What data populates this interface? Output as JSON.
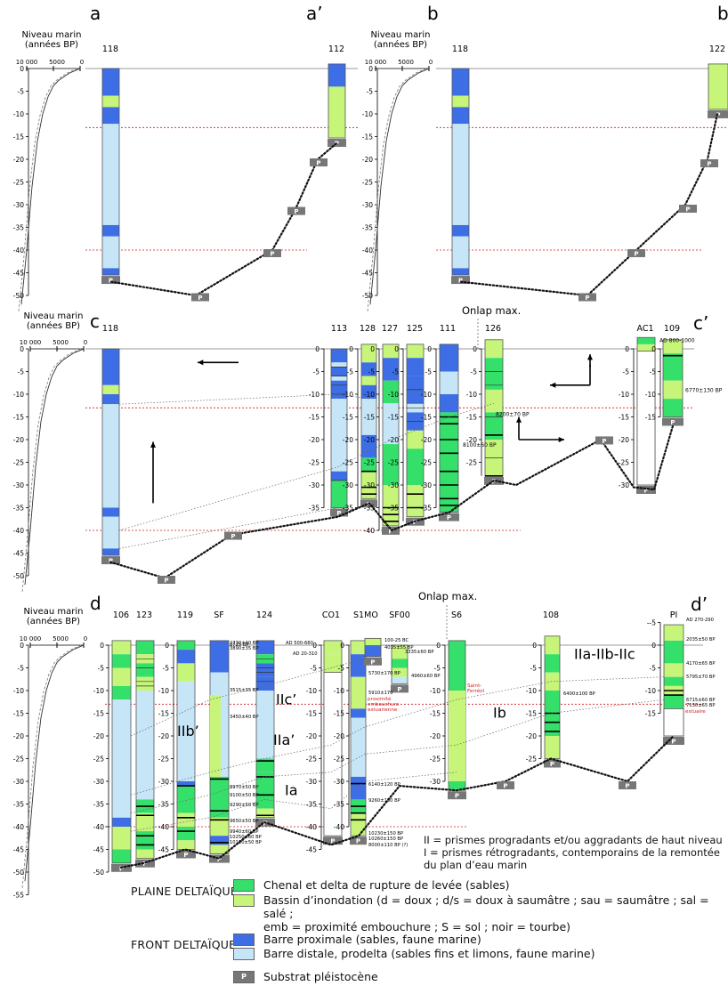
{
  "panels": {
    "a": {
      "label": "a",
      "label2": "a’",
      "sea_label": "Niveau marin",
      "sea_unit": "(années BP)",
      "tick_left": "10 000",
      "tick_mid": "5000",
      "tick_right": "0",
      "core1": "118",
      "core2": "112"
    },
    "b": {
      "label": "b",
      "label2": "b",
      "sea_label": "Niveau marin",
      "sea_unit": "(années BP)",
      "tick_left": "10 000",
      "tick_mid": "5000",
      "tick_right": "0",
      "core1": "118",
      "core2": "122"
    },
    "c": {
      "label": "c",
      "label2": "c’",
      "sea_label": "Niveau marin",
      "sea_unit": "(années BP)",
      "tick_left": "10 000",
      "tick_mid": "5000",
      "tick_right": "0",
      "cores": [
        "118",
        "113",
        "128",
        "127",
        "125",
        "111",
        "126",
        "AC1",
        "109"
      ],
      "onlap": "Onlap max.",
      "dates": [
        "8200±70 BP",
        "8100±60 BP",
        "AD 800-1000",
        "6770±130 BP"
      ]
    },
    "d": {
      "label": "d",
      "label2": "d’",
      "sea_label": "Niveau marin",
      "sea_unit": "(années BP)",
      "tick_left": "10 000",
      "tick_mid": "5000",
      "tick_right": "0",
      "cores": [
        "106",
        "123",
        "119",
        "SF",
        "124",
        "CO1",
        "S1",
        "MO",
        "SF00",
        "S6",
        "108",
        "PI"
      ],
      "onlap": "Onlap max.",
      "units": [
        "IIb’",
        "IIc’",
        "IIa’",
        "Ia",
        "Ib",
        "IIa-IIb-IIc"
      ],
      "dates_sf": [
        "2730±40 BP",
        "2725 BP",
        "3890±35 BP",
        "3515±35 BP",
        "3450±40 BP",
        "8970±50 BP",
        "9100±50 BP",
        "9290±50 BP",
        "9650±50 BP",
        "9940±60 BP",
        "10250±60 BP",
        "10110±50 BP"
      ],
      "dates_co1": [
        "AD 500-680",
        "AD 20-310"
      ],
      "dates_s1": [
        "5730±170 BP",
        "5910±170",
        "6140±120 BP",
        "9260±130 BP",
        "10230±150 BP",
        "10260±150 BP",
        "8000±110 BP (?)"
      ],
      "dates_mo": [
        "100-25 BC",
        "4035±55 BP",
        "3335±60 BP",
        "4960±60 BP"
      ],
      "dates_108": [
        "6400±100 BP"
      ],
      "dates_pi": [
        "AD 270-290",
        "2035±50 BP",
        "4170±65 BP",
        "5795±70 BP",
        "6715±60 BP",
        "7130±65 BP"
      ],
      "red_labels": [
        "proximité",
        "embouchure",
        "estuarienne",
        "Saint-",
        "Ferréol",
        "estuaire"
      ]
    }
  },
  "notes": {
    "line1": "II = prismes progradants et/ou aggradants de haut niveau",
    "line2": "I = prismes rétrogradants, contemporains de la remontée",
    "line3": "du plan d’eau marin"
  },
  "legend": {
    "plaine": "PLAINE DELTAÏQUE",
    "front": "FRONT DELTAÏQUE",
    "chenal": "Chenal et delta de rupture de levée (sables)",
    "bassin1": "Bassin d’inondation (d = doux ; d/s = doux à saumâtre ; sau = saumâtre ; sal = salé ;",
    "bassin2": "emb = proximité embouchure ; S = sol ; noir = tourbe)",
    "barre_prox": "Barre proximale (sables, faune marine)",
    "barre_dist": "Barre distale, prodelta (sables fins et limons, faune marine)",
    "substrat": "Substrat pléistocène",
    "p": "P"
  },
  "colors": {
    "green": "#34e06a",
    "lightgreen": "#c6f57a",
    "blue": "#3e6ee6",
    "lightblue": "#c6e6f8",
    "grey": "#777777",
    "red": "#d21e1e"
  }
}
